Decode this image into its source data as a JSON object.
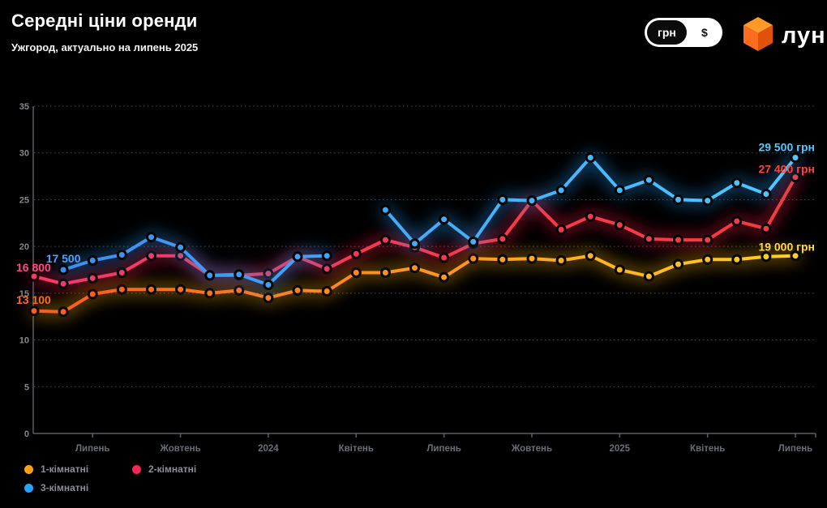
{
  "header": {
    "title": "Середні ціни оренди",
    "subtitle": "Ужгород, актуально на липень 2025",
    "currency_toggle": {
      "selected": "грн",
      "options": [
        "грн",
        "$"
      ]
    },
    "logo_text": "лун"
  },
  "chart_data": {
    "type": "line",
    "title": "Середні ціни оренди",
    "ylim": [
      0,
      35000
    ],
    "y_tick_step": 5000,
    "y_tick_labels": [
      "0",
      "5",
      "10",
      "15",
      "20",
      "25",
      "30",
      "35"
    ],
    "n_points": 27,
    "x_tick_indices": [
      2,
      5,
      8,
      11,
      14,
      17,
      20,
      23,
      26
    ],
    "x_tick_labels": [
      "Липень",
      "Жовтень",
      "2024",
      "Квітень",
      "Липень",
      "Жовтень",
      "2025",
      "Квітень",
      "Липень"
    ],
    "grid": "dotted-horizontal",
    "legend_position": "bottom-left",
    "series": [
      {
        "name": "1-кімнатні",
        "color_start": "#ff5a1f",
        "color_end": "#ffd21f",
        "glow": "#ffb300",
        "values": [
          13100,
          13000,
          14900,
          15400,
          15400,
          15400,
          15000,
          15300,
          14500,
          15300,
          15200,
          17200,
          17200,
          17700,
          16700,
          18700,
          18600,
          18700,
          18500,
          19000,
          17500,
          16800,
          18100,
          18600,
          18600,
          18900,
          19000
        ]
      },
      {
        "name": "2-кімнатні",
        "color_start": "#ff3566",
        "color_end": "#f23d3d",
        "glow": "#ff1744",
        "values": [
          16800,
          16000,
          16600,
          17200,
          19000,
          19000,
          16900,
          16900,
          17100,
          18900,
          17600,
          19200,
          20700,
          19900,
          18800,
          20300,
          20800,
          24900,
          21800,
          23200,
          22300,
          20800,
          20700,
          20700,
          22700,
          21900,
          27400
        ]
      },
      {
        "name": "3-кімнатні",
        "color_start": "#3b8df2",
        "color_end": "#4cc9ff",
        "glow": "#2196f3",
        "values": [
          null,
          17500,
          18500,
          19100,
          21000,
          19900,
          16900,
          17000,
          15900,
          18900,
          19000,
          null,
          23900,
          20300,
          22900,
          20500,
          25000,
          24900,
          26000,
          29500,
          26000,
          27100,
          25000,
          24900,
          26800,
          25600,
          29500
        ]
      }
    ],
    "point_labels": {
      "start": [
        {
          "text": "13 100",
          "series": 0,
          "index": 0,
          "color": "#ff6a2a"
        },
        {
          "text": "16 800",
          "series": 1,
          "index": 0,
          "color": "#ff4d88"
        },
        {
          "text": "17 500",
          "series": 2,
          "index": 1,
          "color": "#4da0ff"
        }
      ],
      "end": [
        {
          "text": "19 000 грн",
          "series": 0,
          "index": 26,
          "color": "#ffd93d"
        },
        {
          "text": "27 400 грн",
          "series": 1,
          "index": 26,
          "color": "#ff4438"
        },
        {
          "text": "29 500 грн",
          "series": 2,
          "index": 26,
          "color": "#54c8ff"
        }
      ]
    }
  },
  "legend": {
    "items": [
      {
        "label": "1-кімнатні",
        "color": "#ffa114"
      },
      {
        "label": "2-кімнатні",
        "color": "#f72755"
      },
      {
        "label": "3-кімнатні",
        "color": "#29a3ff"
      }
    ]
  }
}
